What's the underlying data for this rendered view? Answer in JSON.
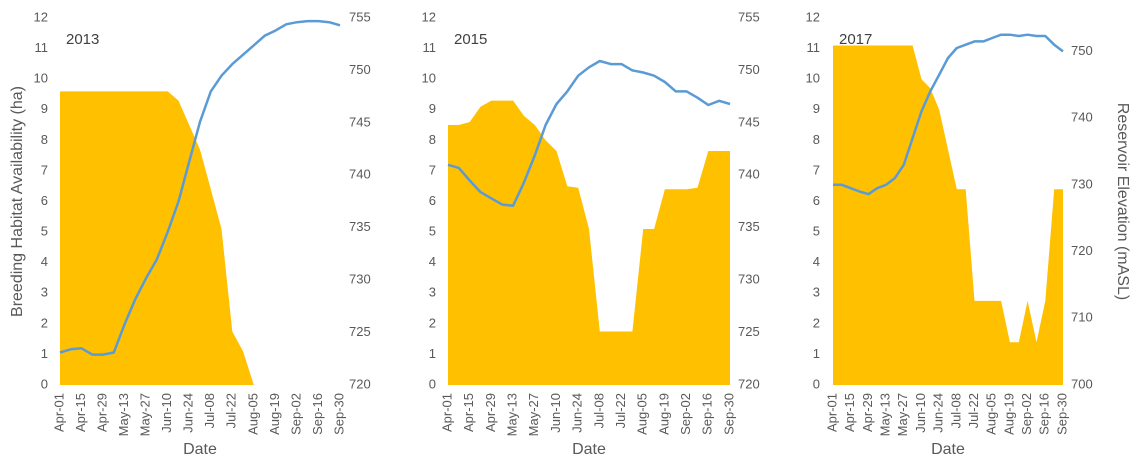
{
  "chart_data": [
    {
      "type": "area-line",
      "annotation": "2013",
      "xlabel": "Date",
      "ylabel": "Breeding Habitat Availability (ha)",
      "categories": [
        "Apr-01",
        null,
        "Apr-15",
        null,
        "Apr-29",
        null,
        "May-13",
        null,
        "May-27",
        null,
        "Jun-10",
        null,
        "Jun-24",
        null,
        "Jul-08",
        null,
        "Jul-22",
        null,
        "Aug-05",
        null,
        "Aug-19",
        null,
        "Sep-02",
        null,
        "Sep-16",
        null,
        "Sep-30"
      ],
      "series": [
        {
          "kind": "area",
          "color": "#FFC000",
          "values": [
            9.6,
            9.6,
            9.6,
            9.6,
            9.6,
            9.6,
            9.6,
            9.6,
            9.6,
            9.6,
            9.6,
            9.3,
            8.5,
            7.7,
            6.4,
            5.1,
            1.75,
            1.1,
            0,
            0,
            0,
            0,
            0,
            0,
            0,
            0,
            0
          ]
        },
        {
          "kind": "line",
          "axis": "y2",
          "color": "#5B9BD5",
          "values": [
            723.1,
            723.4,
            723.5,
            722.9,
            722.9,
            723.1,
            725.8,
            728.2,
            730.2,
            732.0,
            734.6,
            737.5,
            741.3,
            745.1,
            748.0,
            749.5,
            750.6,
            751.5,
            752.4,
            753.3,
            753.8,
            754.4,
            754.6,
            754.7,
            754.7,
            754.6,
            754.3
          ]
        }
      ],
      "ylim": [
        0,
        12
      ],
      "yticks": [
        0,
        1,
        2,
        3,
        4,
        5,
        6,
        7,
        8,
        9,
        10,
        11,
        12
      ],
      "y2lim": [
        720,
        755
      ],
      "y2ticks": [
        720,
        725,
        730,
        735,
        740,
        745,
        750,
        755
      ]
    },
    {
      "type": "area-line",
      "annotation": "2015",
      "xlabel": "Date",
      "categories": [
        "Apr-01",
        null,
        "Apr-15",
        null,
        "Apr-29",
        null,
        "May-13",
        null,
        "May-27",
        null,
        "Jun-10",
        null,
        "Jun-24",
        null,
        "Jul-08",
        null,
        "Jul-22",
        null,
        "Aug-05",
        null,
        "Aug-19",
        null,
        "Sep-02",
        null,
        "Sep-16",
        null,
        "Sep-30"
      ],
      "series": [
        {
          "kind": "area",
          "color": "#FFC000",
          "values": [
            8.5,
            8.5,
            8.6,
            9.1,
            9.3,
            9.3,
            9.3,
            8.8,
            8.5,
            8.0,
            7.65,
            6.5,
            6.45,
            5.1,
            1.75,
            1.75,
            1.75,
            1.75,
            5.1,
            5.1,
            6.4,
            6.4,
            6.4,
            6.45,
            7.65,
            7.65,
            7.65
          ]
        },
        {
          "kind": "line",
          "axis": "y2",
          "color": "#5B9BD5",
          "values": [
            741.0,
            740.7,
            739.5,
            738.4,
            737.8,
            737.2,
            737.1,
            739.3,
            741.9,
            744.8,
            746.8,
            748.0,
            749.5,
            750.3,
            750.9,
            750.6,
            750.6,
            750.0,
            749.8,
            749.5,
            748.9,
            748.0,
            748.0,
            747.4,
            746.7,
            747.1,
            746.8
          ]
        }
      ],
      "ylim": [
        0,
        12
      ],
      "yticks": [
        0,
        1,
        2,
        3,
        4,
        5,
        6,
        7,
        8,
        9,
        10,
        11,
        12
      ],
      "y2lim": [
        720,
        755
      ],
      "y2ticks": [
        720,
        725,
        730,
        735,
        740,
        745,
        750,
        755
      ]
    },
    {
      "type": "area-line",
      "annotation": "2017",
      "xlabel": "Date",
      "y2label": "Reservoir Elevation (mASL)",
      "categories": [
        "Apr-01",
        null,
        "Apr-15",
        null,
        "Apr-29",
        null,
        "May-13",
        null,
        "May-27",
        null,
        "Jun-10",
        null,
        "Jun-24",
        null,
        "Jul-08",
        null,
        "Jul-22",
        null,
        "Aug-05",
        null,
        "Aug-19",
        null,
        "Sep-02",
        null,
        "Sep-16",
        null,
        "Sep-30"
      ],
      "series": [
        {
          "kind": "area",
          "color": "#FFC000",
          "values": [
            11.1,
            11.1,
            11.1,
            11.1,
            11.1,
            11.1,
            11.1,
            11.1,
            11.1,
            11.1,
            10.0,
            9.7,
            9.0,
            7.7,
            6.4,
            6.4,
            2.75,
            2.75,
            2.75,
            2.75,
            1.4,
            1.4,
            2.75,
            1.4,
            2.75,
            6.4,
            6.4
          ]
        },
        {
          "kind": "line",
          "axis": "y2",
          "color": "#5B9BD5",
          "values": [
            730,
            730,
            729.5,
            729,
            728.6,
            729.5,
            730,
            731,
            733,
            737,
            741,
            744,
            746.5,
            749,
            750.5,
            751,
            751.5,
            751.5,
            752,
            752.5,
            752.5,
            752.3,
            752.5,
            752.3,
            752.3,
            751,
            750
          ]
        }
      ],
      "ylim": [
        0,
        12
      ],
      "yticks": [
        0,
        1,
        2,
        3,
        4,
        5,
        6,
        7,
        8,
        9,
        10,
        11,
        12
      ],
      "y2lim": [
        700,
        755
      ],
      "y2ticks": [
        700,
        710,
        720,
        730,
        740,
        750
      ]
    }
  ]
}
